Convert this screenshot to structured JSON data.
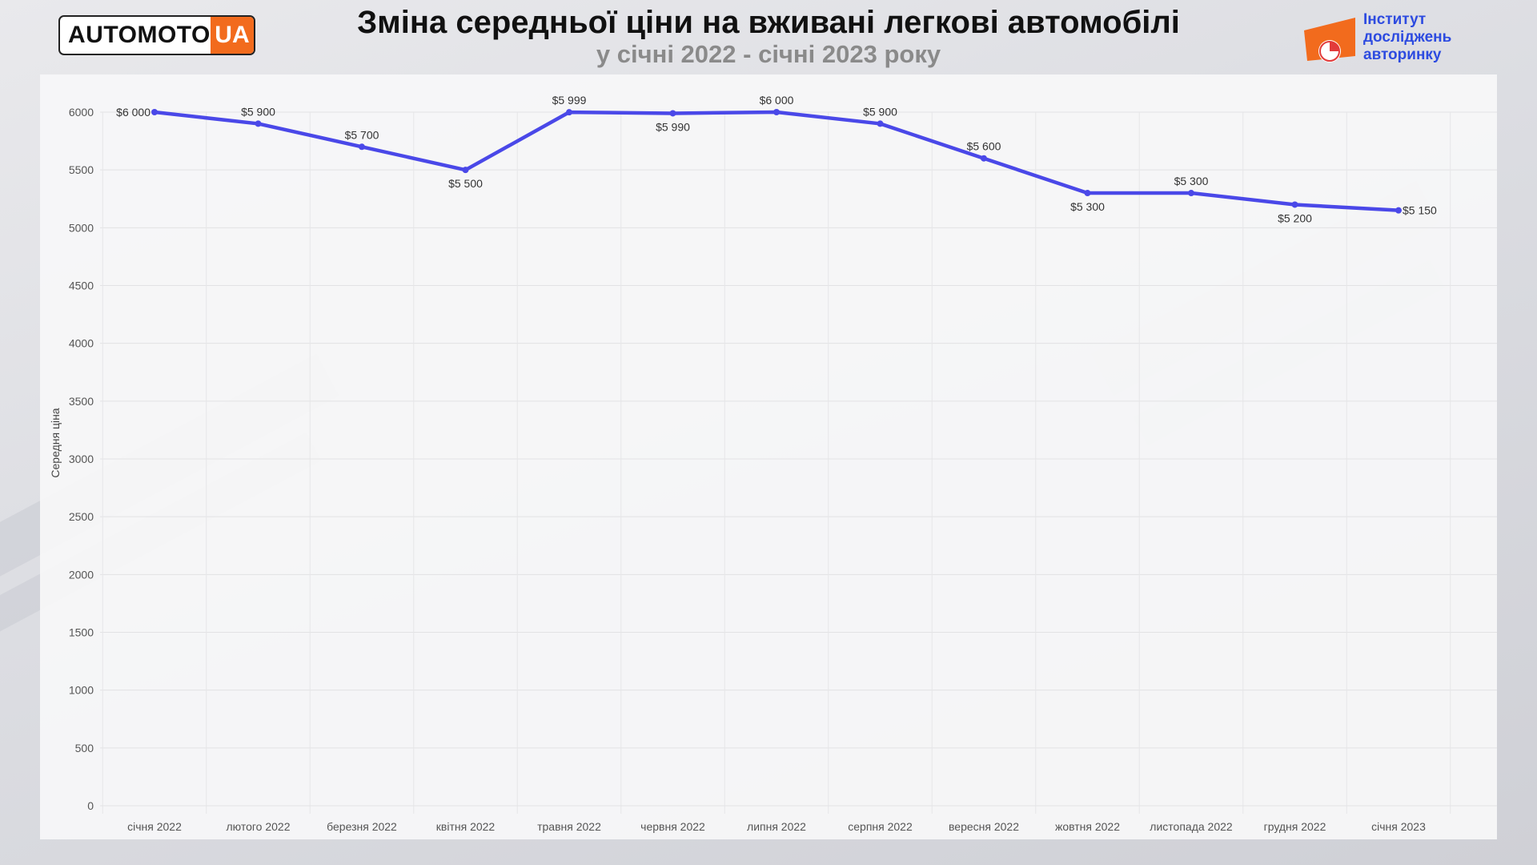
{
  "header": {
    "logo_left_word": "AUTOMOTO",
    "logo_left_suffix": "UA",
    "title": "Зміна середньої ціни на вживані легкові автомобілі",
    "subtitle": "у січні 2022 - січні 2023 року",
    "logo_right_lines": [
      "Інститут",
      "досліджень",
      "авторинку"
    ]
  },
  "colors": {
    "line": "#4a48e8",
    "accent_orange": "#f26b1d",
    "brand_blue": "#2d4be0"
  },
  "chart_data": {
    "type": "line",
    "title": "Зміна середньої ціни на вживані легкові автомобілі",
    "subtitle": "у січні 2022 - січні 2023 року",
    "xlabel": "",
    "ylabel": "Середня ціна",
    "ylim": [
      0,
      6000
    ],
    "yticks": [
      "0",
      "500",
      "1000",
      "1500",
      "2000",
      "2500",
      "3000",
      "3500",
      "4000",
      "4500",
      "5000",
      "5500",
      "6000"
    ],
    "grid": true,
    "categories": [
      "січня 2022",
      "лютого 2022",
      "березня 2022",
      "квітня 2022",
      "травня 2022",
      "червня 2022",
      "липня 2022",
      "серпня 2022",
      "вересня 2022",
      "жовтня 2022",
      "листопада 2022",
      "грудня 2022",
      "січня 2023"
    ],
    "series": [
      {
        "values": [
          6000,
          5900,
          5700,
          5500,
          5999,
          5990,
          6000,
          5900,
          5600,
          5300,
          5300,
          5200,
          5150
        ],
        "labels": [
          "$6 000",
          "$5 900",
          "$5 700",
          "$5 500",
          "$5 999",
          "$5 990",
          "$6 000",
          "$5 900",
          "$5 600",
          "$5 300",
          "$5 300",
          "$5 200",
          "$5 150"
        ]
      }
    ]
  }
}
